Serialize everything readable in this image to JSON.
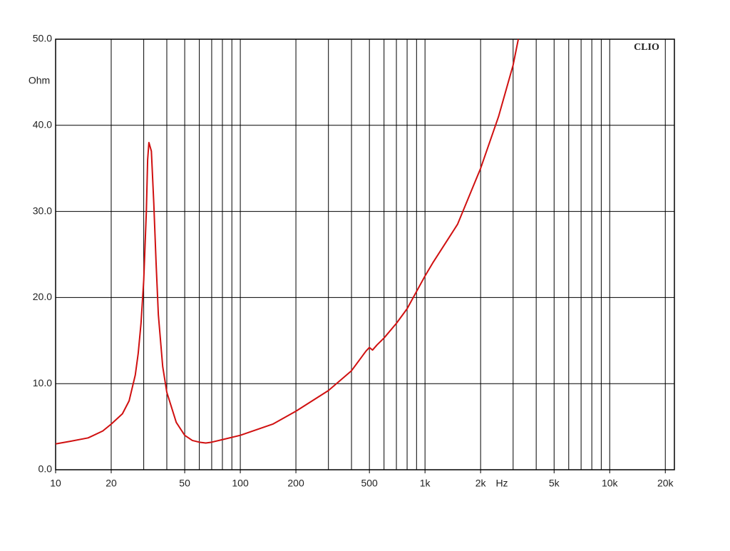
{
  "chart_data": {
    "type": "line",
    "brand": "CLIO",
    "y_unit": "Ohm",
    "x_unit": "Hz",
    "log_x": true,
    "grid": true,
    "color": "#d01010",
    "x": [
      10,
      12,
      15,
      18,
      20,
      23,
      25,
      27,
      28,
      29,
      30,
      31,
      31.5,
      32,
      33,
      34,
      35,
      36,
      38,
      40,
      45,
      50,
      55,
      60,
      65,
      70,
      80,
      100,
      150,
      200,
      300,
      400,
      480,
      500,
      520,
      550,
      600,
      700,
      800,
      1000,
      1100,
      1500,
      2000,
      2500,
      3000,
      3200
    ],
    "values": [
      3.0,
      3.3,
      3.7,
      4.5,
      5.3,
      6.5,
      8,
      11,
      13.5,
      17,
      22,
      30,
      36,
      38,
      37,
      31,
      24,
      18,
      12,
      9,
      5.5,
      4,
      3.4,
      3.2,
      3.1,
      3.2,
      3.5,
      4.0,
      5.3,
      6.8,
      9.2,
      11.5,
      13.8,
      14.2,
      13.9,
      14.5,
      15.3,
      17,
      18.7,
      22.5,
      24,
      28.5,
      35,
      41,
      47,
      50
    ],
    "xlim": [
      10,
      22400
    ],
    "ylim": [
      0,
      50
    ],
    "xticks": [
      10,
      20,
      50,
      100,
      200,
      500,
      {
        "value": 1000,
        "label": "1k"
      },
      {
        "value": 2000,
        "label": "2k"
      },
      {
        "value": 5000,
        "label": "5k"
      },
      {
        "value": 10000,
        "label": "10k"
      },
      {
        "value": 20000,
        "label": "20k"
      }
    ],
    "xminor": [
      30,
      40,
      60,
      70,
      80,
      90,
      300,
      400,
      600,
      700,
      800,
      900,
      3000,
      4000,
      6000,
      7000,
      8000,
      9000
    ],
    "yticks": [
      {
        "value": 0,
        "label": "0.0"
      },
      {
        "value": 10,
        "label": "10.0"
      },
      {
        "value": 20,
        "label": "20.0"
      },
      {
        "value": 30,
        "label": "30.0"
      },
      {
        "value": 40,
        "label": "40.0"
      },
      {
        "value": 50,
        "label": "50.0"
      }
    ]
  }
}
